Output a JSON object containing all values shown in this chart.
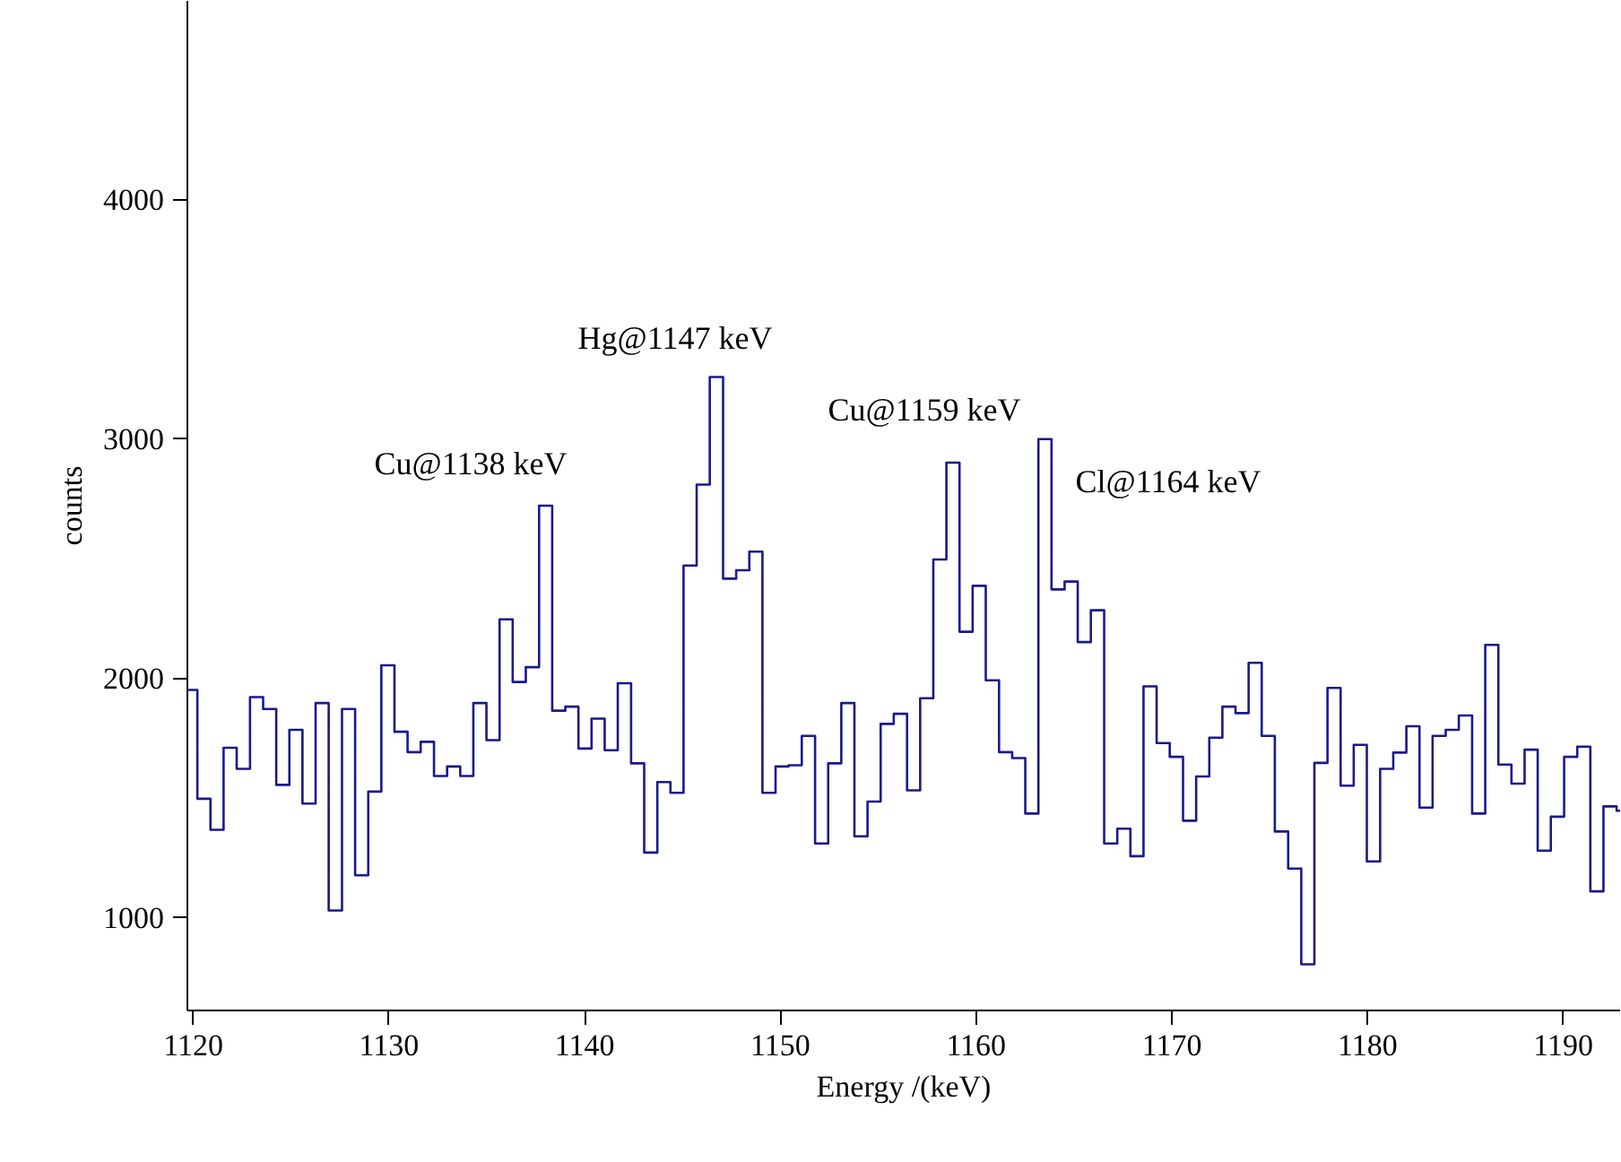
{
  "chart_data": {
    "type": "histogram",
    "xlabel": "Energy /(keV)",
    "ylabel": "counts",
    "color": "#1a1a8c",
    "xlim": [
      1119.7,
      1192.9
    ],
    "ylim": [
      610,
      4830
    ],
    "xticks": [
      1120,
      1130,
      1140,
      1150,
      1160,
      1170,
      1180,
      1190
    ],
    "yticks": [
      1000,
      2000,
      3000,
      4000
    ],
    "bins": [
      1119.7,
      1120.21,
      1120.88,
      1121.55,
      1122.22,
      1122.9,
      1123.57,
      1124.24,
      1124.91,
      1125.58,
      1126.25,
      1126.92,
      1127.6,
      1128.27,
      1128.94,
      1129.61,
      1130.28,
      1130.95,
      1131.62,
      1132.3,
      1132.97,
      1133.64,
      1134.31,
      1134.98,
      1135.65,
      1136.32,
      1136.99,
      1137.67,
      1138.34,
      1139.01,
      1139.68,
      1140.35,
      1141.02,
      1141.69,
      1142.37,
      1143.04,
      1143.71,
      1144.38,
      1145.05,
      1145.72,
      1146.39,
      1147.07,
      1147.74,
      1148.41,
      1149.08,
      1149.75,
      1150.42,
      1151.09,
      1151.77,
      1152.44,
      1153.11,
      1153.78,
      1154.45,
      1155.12,
      1155.79,
      1156.47,
      1157.14,
      1157.81,
      1158.48,
      1159.15,
      1159.82,
      1160.49,
      1161.17,
      1161.84,
      1162.51,
      1163.18,
      1163.85,
      1164.52,
      1165.19,
      1165.86,
      1166.54,
      1167.21,
      1167.88,
      1168.55,
      1169.22,
      1169.89,
      1170.57,
      1171.24,
      1171.91,
      1172.58,
      1173.25,
      1173.92,
      1174.59,
      1175.26,
      1175.94,
      1176.61,
      1177.28,
      1177.95,
      1178.62,
      1179.29,
      1179.96,
      1180.64,
      1181.31,
      1181.98,
      1182.65,
      1183.32,
      1183.99,
      1184.66,
      1185.34,
      1186.01,
      1186.68,
      1187.35,
      1188.02,
      1188.69,
      1189.36,
      1190.04,
      1190.71,
      1191.38,
      1192.05,
      1192.72,
      1192.9
    ],
    "values": [
      1950,
      1495,
      1365,
      1708,
      1620,
      1920,
      1870,
      1553,
      1783,
      1475,
      1895,
      1028,
      1870,
      1175,
      1525,
      2053,
      1775,
      1690,
      1733,
      1590,
      1630,
      1590,
      1895,
      1740,
      2245,
      1983,
      2045,
      2720,
      1863,
      1880,
      1705,
      1830,
      1698,
      1978,
      1643,
      1270,
      1565,
      1520,
      2470,
      2808,
      3258,
      2415,
      2450,
      2528,
      1520,
      1630,
      1635,
      1758,
      1308,
      1643,
      1895,
      1338,
      1483,
      1808,
      1850,
      1530,
      1915,
      2495,
      2900,
      2193,
      2385,
      1990,
      1690,
      1665,
      1433,
      2998,
      2370,
      2403,
      2150,
      2283,
      1308,
      1370,
      1255,
      1965,
      1728,
      1670,
      1403,
      1588,
      1750,
      1880,
      1853,
      2063,
      1758,
      1358,
      1203,
      803,
      1645,
      1958,
      1550,
      1720,
      1233,
      1620,
      1688,
      1798,
      1458,
      1758,
      1783,
      1843,
      1433,
      2138,
      1638,
      1558,
      1700,
      1278,
      1420,
      1670,
      1713,
      1108,
      1463,
      1445
    ],
    "annotations": [
      "Cu@1138 keV",
      "Hg@1147 keV",
      "Cu@1159 keV",
      "Cl@1164 keV"
    ]
  }
}
